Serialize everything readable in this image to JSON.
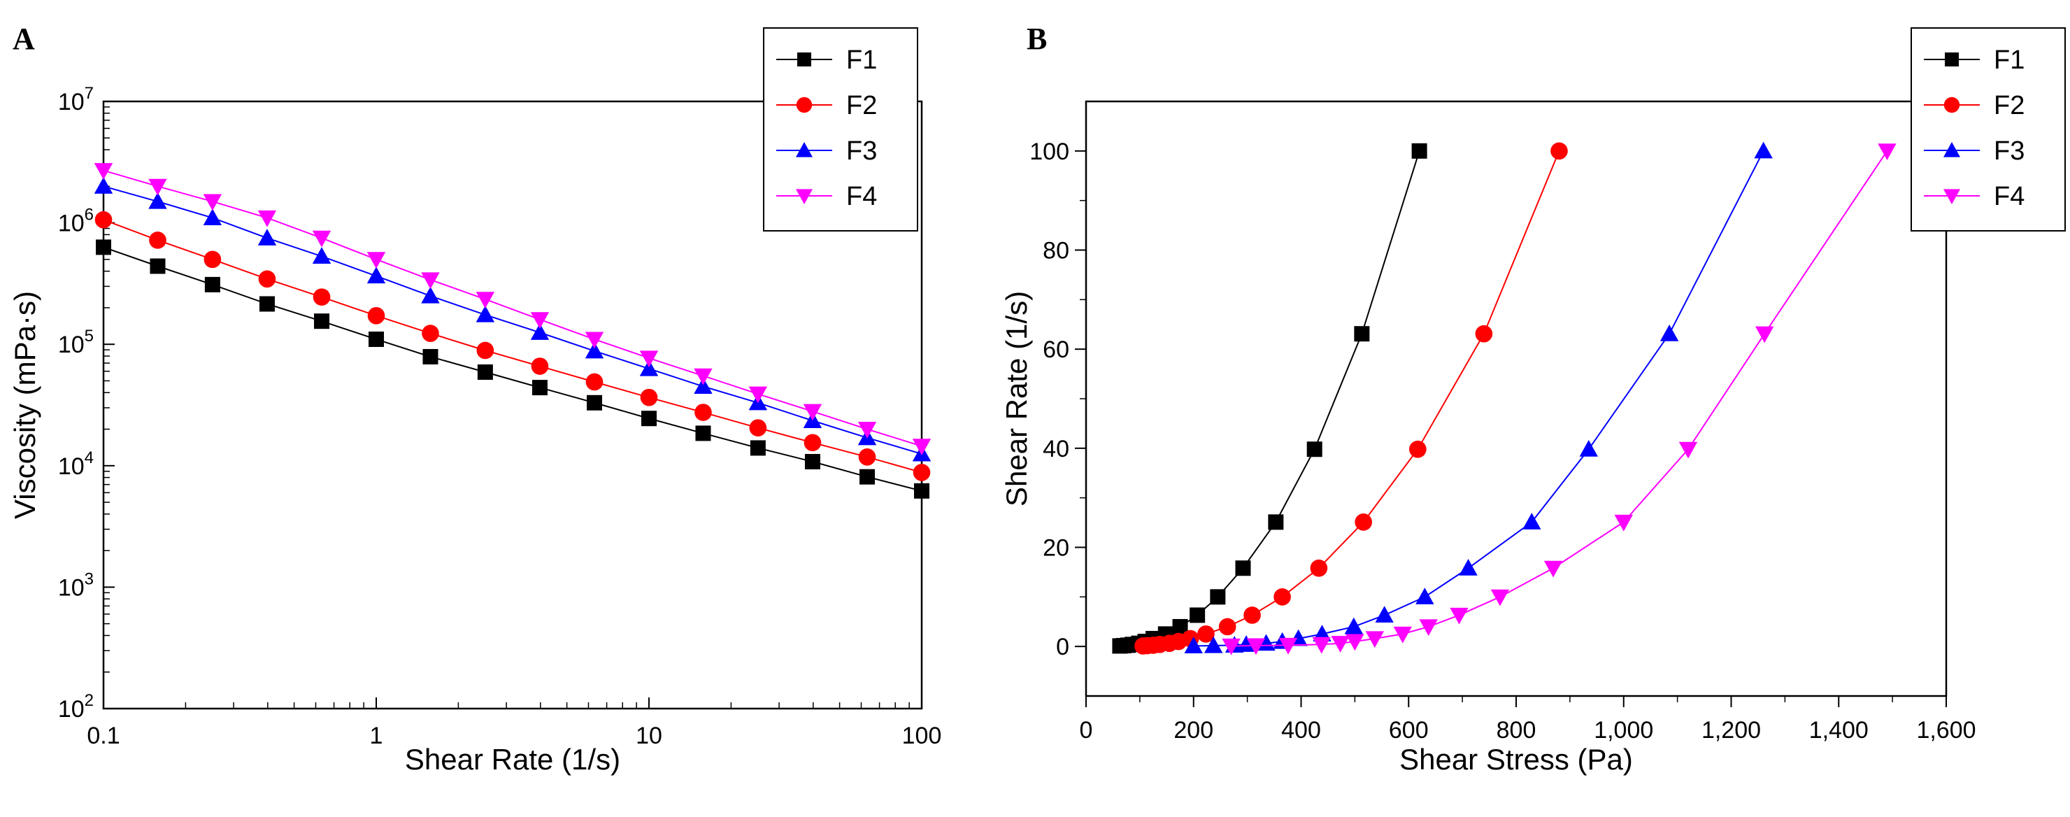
{
  "chart_data": [
    {
      "panel": "A",
      "type": "line",
      "scale": "log-log",
      "xlabel": "Shear Rate (1/s)",
      "ylabel": "Viscosity (mPa·s)",
      "xlim": [
        0.1,
        100
      ],
      "ylim": [
        100,
        10000000
      ],
      "x_ticks": [
        {
          "value": 0.1,
          "label": "0.1"
        },
        {
          "value": 1,
          "label": "1"
        },
        {
          "value": 10,
          "label": "10"
        },
        {
          "value": 100,
          "label": "100"
        }
      ],
      "y_ticks": [
        {
          "value": 100,
          "base": "10",
          "exp": "2"
        },
        {
          "value": 1000,
          "base": "10",
          "exp": "3"
        },
        {
          "value": 10000,
          "base": "10",
          "exp": "4"
        },
        {
          "value": 100000,
          "base": "10",
          "exp": "5"
        },
        {
          "value": 1000000,
          "base": "10",
          "exp": "6"
        },
        {
          "value": 10000000,
          "base": "10",
          "exp": "7"
        }
      ],
      "x": [
        0.1,
        0.158,
        0.251,
        0.398,
        0.631,
        1,
        1.58,
        2.51,
        3.98,
        6.31,
        10,
        15.8,
        25.1,
        39.8,
        63.1,
        100
      ],
      "series": [
        {
          "name": "F1",
          "color": "#000000",
          "marker": "square",
          "values": [
            630000,
            440000,
            310000,
            215000,
            155000,
            110000,
            79000,
            59000,
            44000,
            33000,
            24500,
            18500,
            14000,
            10800,
            8100,
            6200
          ]
        },
        {
          "name": "F2",
          "color": "#ff0000",
          "marker": "circle",
          "values": [
            1060000,
            720000,
            500000,
            345000,
            245000,
            172000,
            123000,
            89000,
            66000,
            49000,
            36500,
            27500,
            20500,
            15500,
            11800,
            8800
          ]
        },
        {
          "name": "F3",
          "color": "#0000ff",
          "marker": "triangle-up",
          "values": [
            2000000,
            1500000,
            1100000,
            750000,
            530000,
            365000,
            250000,
            175000,
            125000,
            88000,
            63000,
            45000,
            33000,
            23500,
            17000,
            12500
          ]
        },
        {
          "name": "F4",
          "color": "#ff00ff",
          "marker": "triangle-down",
          "values": [
            2700000,
            2000000,
            1500000,
            1100000,
            750000,
            500000,
            340000,
            235000,
            160000,
            110000,
            77000,
            55000,
            39000,
            28000,
            20000,
            14500
          ]
        }
      ],
      "legend": "top-right"
    },
    {
      "panel": "B",
      "type": "line",
      "scale": "linear",
      "xlabel": "Shear Stress (Pa)",
      "ylabel": "Shear Rate (1/s)",
      "xlim": [
        0,
        1600
      ],
      "ylim": [
        -10,
        110
      ],
      "x_ticks": [
        {
          "value": 0,
          "label": "0"
        },
        {
          "value": 200,
          "label": "200"
        },
        {
          "value": 400,
          "label": "400"
        },
        {
          "value": 600,
          "label": "600"
        },
        {
          "value": 800,
          "label": "800"
        },
        {
          "value": 1000,
          "label": "1,000"
        },
        {
          "value": 1200,
          "label": "1,200"
        },
        {
          "value": 1400,
          "label": "1,400"
        },
        {
          "value": 1600,
          "label": "1,600"
        }
      ],
      "y_ticks": [
        {
          "value": 0,
          "label": "0"
        },
        {
          "value": 20,
          "label": "20"
        },
        {
          "value": 40,
          "label": "40"
        },
        {
          "value": 60,
          "label": "60"
        },
        {
          "value": 80,
          "label": "80"
        },
        {
          "value": 100,
          "label": "100"
        }
      ],
      "y": [
        0.1,
        0.158,
        0.251,
        0.398,
        0.631,
        1,
        1.58,
        2.51,
        3.98,
        6.31,
        10,
        15.8,
        25.1,
        39.8,
        63.1,
        100
      ],
      "series": [
        {
          "name": "F1",
          "color": "#000000",
          "marker": "square",
          "x": [
            63,
            70,
            78,
            86,
            98,
            110,
            125,
            148,
            175,
            207,
            245,
            292,
            353,
            425,
            513,
            620
          ]
        },
        {
          "name": "F2",
          "color": "#ff0000",
          "marker": "circle",
          "x": [
            106,
            114,
            125,
            137,
            155,
            172,
            194,
            223,
            263,
            309,
            365,
            433,
            516,
            617,
            740,
            880
          ]
        },
        {
          "name": "F3",
          "color": "#0000ff",
          "marker": "triangle-up",
          "x": [
            200,
            237,
            276,
            298,
            335,
            365,
            395,
            439,
            498,
            555,
            630,
            711,
            829,
            935,
            1085,
            1260
          ]
        },
        {
          "name": "F4",
          "color": "#ff00ff",
          "marker": "triangle-down",
          "x": [
            270,
            316,
            376,
            438,
            473,
            500,
            537,
            589,
            637,
            694,
            770,
            869,
            1000,
            1120,
            1262,
            1490
          ]
        }
      ],
      "legend": "top-right"
    }
  ]
}
